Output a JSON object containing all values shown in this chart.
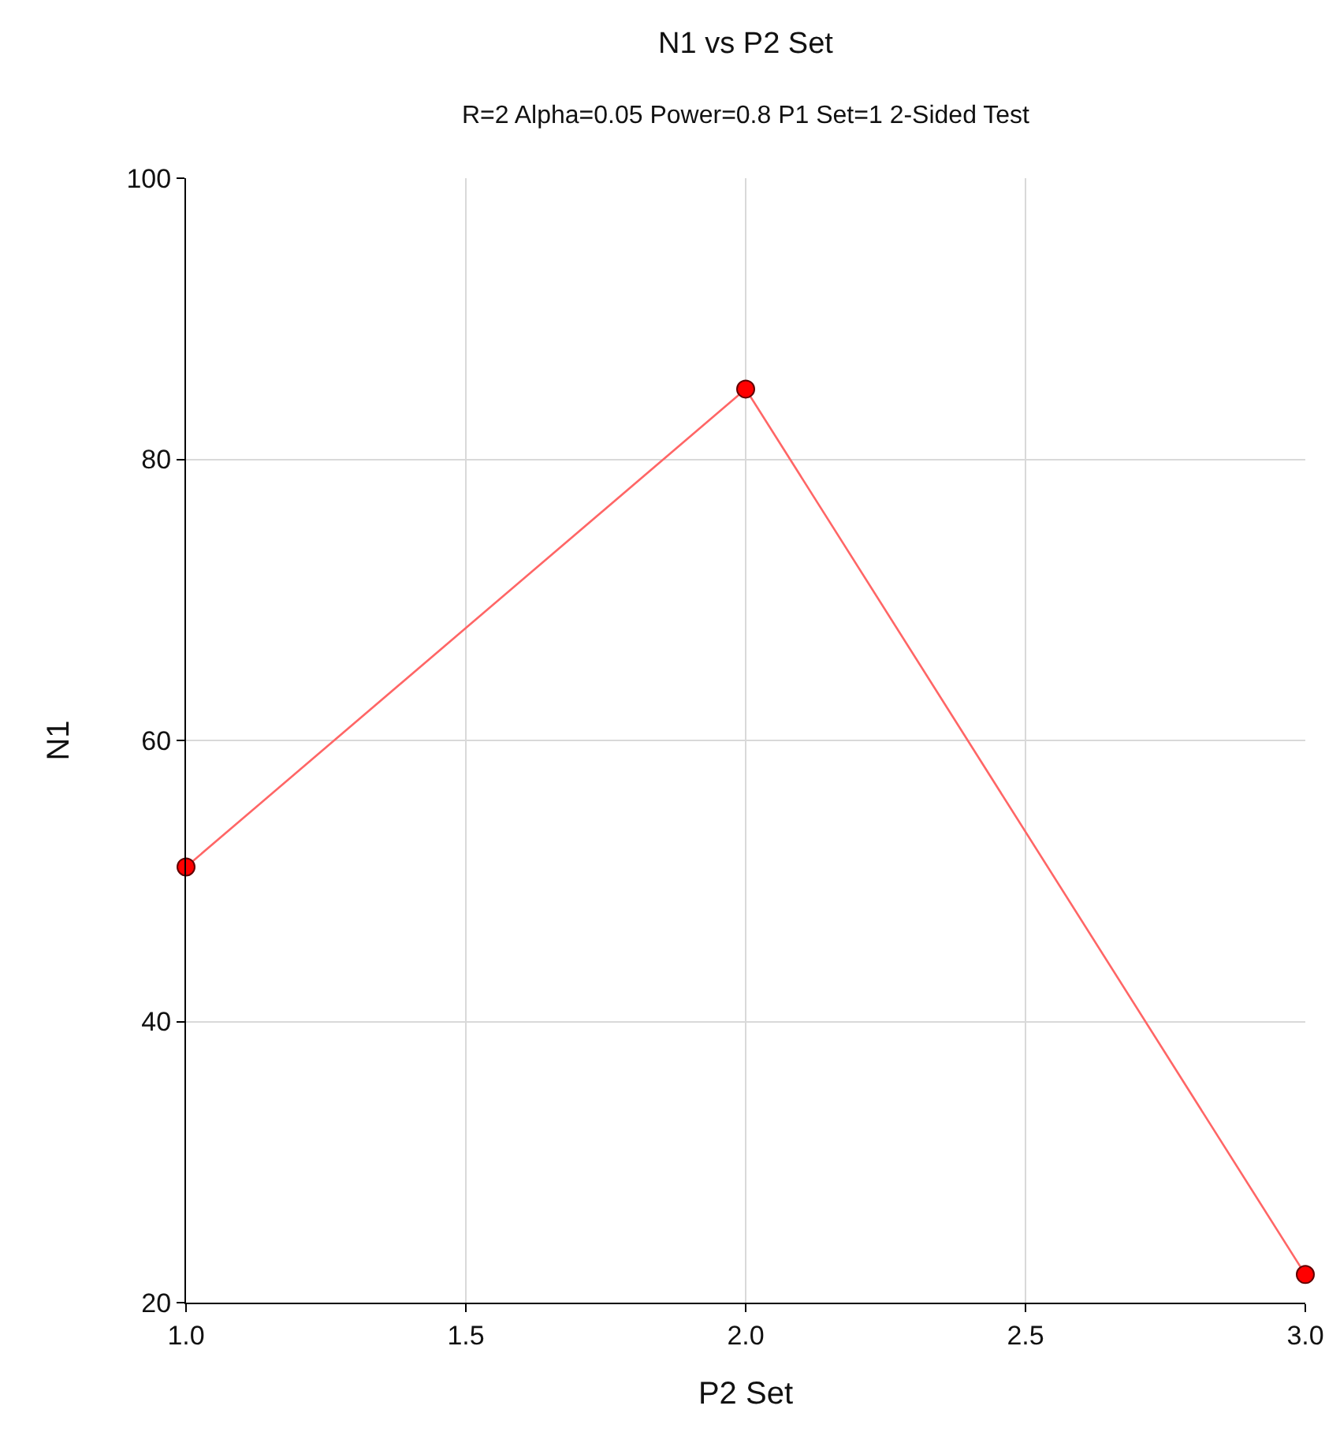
{
  "chart_data": {
    "type": "line",
    "title": "N1 vs P2 Set",
    "subtitle": "R=2 Alpha=0.05 Power=0.8 P1 Set=1 2-Sided Test",
    "xlabel": "P2 Set",
    "ylabel": "N1",
    "x": [
      1,
      2,
      3
    ],
    "series": [
      {
        "color": "#ff0000",
        "values": [
          51,
          85,
          22
        ]
      }
    ],
    "xlim": [
      1,
      3
    ],
    "xticks": [
      {
        "value": 1,
        "label": "1.0"
      },
      {
        "value": 1.5,
        "label": "1.5"
      },
      {
        "value": 2,
        "label": "2.0"
      },
      {
        "value": 2.5,
        "label": "2.5"
      },
      {
        "value": 3,
        "label": "3.0"
      }
    ],
    "ylim": [
      20,
      100
    ],
    "yticks": [
      20,
      40,
      60,
      80,
      100
    ],
    "grid": true,
    "marker": "circle",
    "line_style": "solid"
  }
}
